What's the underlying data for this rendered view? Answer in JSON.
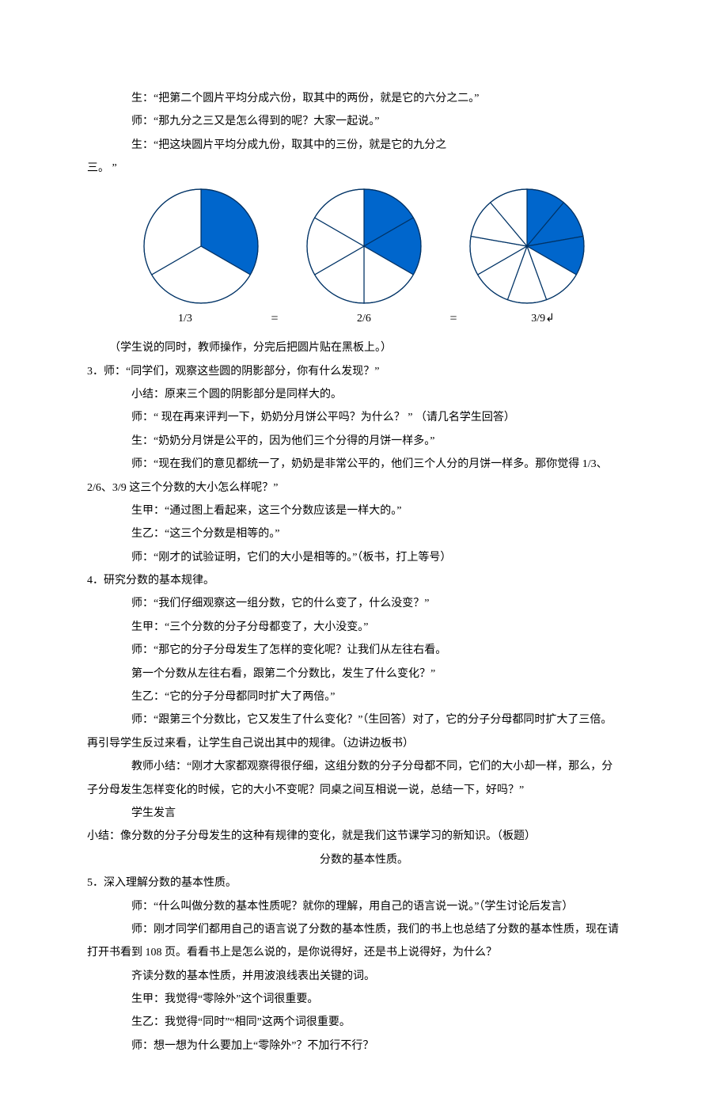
{
  "lines": {
    "l0": "生：“把第二个圆片平均分成六份，取其中的两份，就是它的六分之二。”",
    "l1": "师：“那九分之三又是怎么得到的呢？大家一起说。”",
    "l2": "生：“把这块圆片平均分成九份，取其中的三份，就是它的九分之",
    "l3": "三。 ”",
    "l4": "（学生说的同时，教师操作，分完后把圆片贴在黑板上。）",
    "l5": "3．师：“同学们，观察这些圆的阴影部分，你有什么发现？”",
    "l6": "小结：原来三个圆的阴影部分是同样大的。",
    "l7": "师：“ 现在再来评判一下，奶奶分月饼公平吗？为什么？ ” （请几名学生回答）",
    "l8": "生：“奶奶分月饼是公平的，因为他们三个分得的月饼一样多。”",
    "l9": "师：“现在我们的意见都统一了，奶奶是非常公平的，他们三个人分的月饼一样多。那你觉得 1/3、",
    "l10": "2/6、3/9 这三个分数的大小怎么样呢？”",
    "l11": "生甲：“通过图上看起来，这三个分数应该是一样大的。”",
    "l12": "生乙：“这三个分数是相等的。”",
    "l13": "师：“刚才的试验证明，它们的大小是相等的。”（板书，打上等号）",
    "l14": "4．研究分数的基本规律。",
    "l15": "师：“我们仔细观察这一组分数，它的什么变了，什么没变？”",
    "l16": "生甲：“三个分数的分子分母都变了，大小没变。”",
    "l17": "师：“那它的分子分母发生了怎样的变化呢？让我们从左往右看。",
    "l18": "第一个分数从左往右看，跟第二个分数比，发生了什么变化？”",
    "l19": "生乙：“它的分子分母都同时扩大了两倍。”",
    "l20": "师：“跟第三个分数比，它又发生了什么变化？”（生回答）对了，它的分子分母都同时扩大了三倍。",
    "l21": "再引导学生反过来看，让学生自己说出其中的规律。（边讲边板书）",
    "l22": "教师小结：“刚才大家都观察得很仔细，这组分数的分子分母都不同，它们的大小却一样，那么，分",
    "l23": "子分母发生怎样变化的时候，它的大小不变呢？同桌之间互相说一说，总结一下，好吗？”",
    "l24": "学生发言",
    "l25": "小结：像分数的分子分母发生的这种有规律的变化，就是我们这节课学习的新知识。（板题）",
    "l26": "分数的基本性质。",
    "l27": "5．深入理解分数的基本性质。",
    "l28": "师：“什么叫做分数的基本性质呢？就你的理解，用自己的语言说一说。”（学生讨论后发言）",
    "l29": "师：刚才同学们都用自己的语言说了分数的基本性质，我们的书上也总结了分数的基本性质，现在请",
    "l30": "打开书看到 108 页。看看书上是怎么说的，是你说得好，还是书上说得好，为什么？",
    "l31": "齐读分数的基本性质，并用波浪线表出关键的词。",
    "l32": "生甲：我觉得“零除外”这个词很重要。",
    "l33": "生乙：我觉得“同时”“相同”这两个词很重要。",
    "l34": "师：想一想为什么要加上“零除外”？不加行不行？"
  },
  "figure": {
    "type": "pie-set",
    "circles": [
      {
        "slices": 3,
        "filled": 1,
        "label": "1/3"
      },
      {
        "slices": 6,
        "filled": 2,
        "label": "2/6"
      },
      {
        "slices": 9,
        "filled": 3,
        "label": "3/9↲"
      }
    ],
    "equals": "=",
    "radius": 72,
    "fill_color": "#0066cc",
    "empty_color": "#ffffff",
    "stroke_color": "#003366",
    "stroke_width": 1.2,
    "start_angle_deg": -90
  }
}
